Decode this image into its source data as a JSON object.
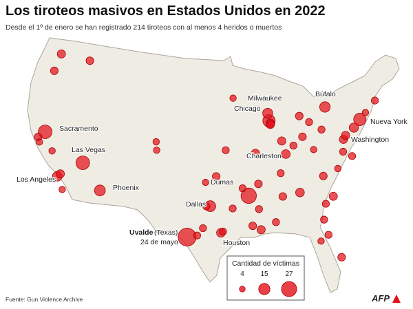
{
  "title": "Los tiroteos masivos en Estados Unidos en 2022",
  "subtitle": "Desde el 1º de enero se han registrado 214 tiroteos con al menos 4 heridos o muertos",
  "cities": [
    "Sacramento",
    "Las Vegas",
    "Los Angeles",
    "Phoenix",
    "Dallas",
    "Dumas",
    "Houston",
    "Chicago",
    "Milwaukee",
    "Charleston",
    "Búfalo",
    "Nueva York",
    "Washington"
  ],
  "uvalde": {
    "name": "Uvalde",
    "state": "(Texas)",
    "date": "24 de mayo"
  },
  "shootings": [
    {
      "lon": -99.79,
      "lat": 29.21,
      "victims": 38
    },
    {
      "lon": -91.49,
      "lat": 33.88,
      "victims": 28
    },
    {
      "lon": -115.14,
      "lat": 36.17,
      "victims": 22
    },
    {
      "lon": -121.49,
      "lat": 38.58,
      "victims": 22
    },
    {
      "lon": -87.8,
      "lat": 42.18,
      "victims": 18
    },
    {
      "lon": -96.8,
      "lat": 32.78,
      "victims": 14
    },
    {
      "lon": -112.07,
      "lat": 33.45,
      "victims": 14
    },
    {
      "lon": -78.88,
      "lat": 42.89,
      "victims": 13
    },
    {
      "lon": -74.0,
      "lat": 40.71,
      "victims": 18
    },
    {
      "lon": -118.24,
      "lat": 34.05,
      "victims": 11
    },
    {
      "lon": -117.9,
      "lat": 34.4,
      "victims": 8
    },
    {
      "lon": -87.9,
      "lat": 43.04,
      "victims": 12
    },
    {
      "lon": -87.63,
      "lat": 41.88,
      "victims": 9
    },
    {
      "lon": -87.65,
      "lat": 41.75,
      "victims": 8
    },
    {
      "lon": -95.37,
      "lat": 29.76,
      "victims": 9
    },
    {
      "lon": -95.1,
      "lat": 29.9,
      "victims": 6
    },
    {
      "lon": -77.04,
      "lat": 38.9,
      "victims": 8
    },
    {
      "lon": -75.16,
      "lat": 39.95,
      "victims": 10
    },
    {
      "lon": -85.76,
      "lat": 38.25,
      "victims": 9
    },
    {
      "lon": -81.63,
      "lat": 38.35,
      "victims": 5
    },
    {
      "lon": -122.33,
      "lat": 47.6,
      "victims": 8
    },
    {
      "lon": -122.68,
      "lat": 45.52,
      "victims": 7
    },
    {
      "lon": -117.4,
      "lat": 47.66,
      "victims": 7
    },
    {
      "lon": -122.27,
      "lat": 37.8,
      "victims": 7
    },
    {
      "lon": -121.9,
      "lat": 37.3,
      "victims": 5
    },
    {
      "lon": -119.8,
      "lat": 36.7,
      "victims": 5
    },
    {
      "lon": -117.16,
      "lat": 32.72,
      "victims": 5
    },
    {
      "lon": -104.99,
      "lat": 39.74,
      "victims": 5
    },
    {
      "lon": -104.8,
      "lat": 38.8,
      "victims": 5
    },
    {
      "lon": -90.2,
      "lat": 38.63,
      "victims": 8
    },
    {
      "lon": -94.58,
      "lat": 39.1,
      "victims": 6
    },
    {
      "lon": -90.05,
      "lat": 35.15,
      "victims": 7
    },
    {
      "lon": -86.78,
      "lat": 36.16,
      "victims": 6
    },
    {
      "lon": -84.39,
      "lat": 33.75,
      "victims": 9
    },
    {
      "lon": -86.8,
      "lat": 33.52,
      "victims": 7
    },
    {
      "lon": -90.07,
      "lat": 29.95,
      "victims": 8
    },
    {
      "lon": -91.15,
      "lat": 30.45,
      "victims": 7
    },
    {
      "lon": -93.75,
      "lat": 32.5,
      "victims": 6
    },
    {
      "lon": -97.33,
      "lat": 32.75,
      "victims": 6
    },
    {
      "lon": -97.74,
      "lat": 30.27,
      "victims": 6
    },
    {
      "lon": -98.49,
      "lat": 29.42,
      "victims": 6
    },
    {
      "lon": -97.5,
      "lat": 35.47,
      "victims": 5
    },
    {
      "lon": -95.99,
      "lat": 36.15,
      "victims": 7
    },
    {
      "lon": -83.05,
      "lat": 42.33,
      "victims": 7
    },
    {
      "lon": -81.69,
      "lat": 41.5,
      "victims": 6
    },
    {
      "lon": -83.0,
      "lat": 39.96,
      "victims": 7
    },
    {
      "lon": -84.51,
      "lat": 39.1,
      "victims": 6
    },
    {
      "lon": -86.16,
      "lat": 39.77,
      "victims": 8
    },
    {
      "lon": -80.0,
      "lat": 40.44,
      "victims": 6
    },
    {
      "lon": -76.61,
      "lat": 39.29,
      "victims": 8
    },
    {
      "lon": -77.44,
      "lat": 37.54,
      "victims": 6
    },
    {
      "lon": -76.3,
      "lat": 36.85,
      "victims": 6
    },
    {
      "lon": -80.84,
      "lat": 35.23,
      "victims": 7
    },
    {
      "lon": -78.64,
      "lat": 35.78,
      "victims": 5
    },
    {
      "lon": -79.94,
      "lat": 32.78,
      "victims": 8
    },
    {
      "lon": -81.1,
      "lat": 32.08,
      "victims": 6
    },
    {
      "lon": -81.66,
      "lat": 30.33,
      "victims": 6
    },
    {
      "lon": -82.46,
      "lat": 27.95,
      "victims": 5
    },
    {
      "lon": -81.38,
      "lat": 28.54,
      "victims": 6
    },
    {
      "lon": -80.19,
      "lat": 25.76,
      "victims": 7
    },
    {
      "lon": -71.06,
      "lat": 42.36,
      "victims": 6
    },
    {
      "lon": -72.93,
      "lat": 41.31,
      "victims": 5
    },
    {
      "lon": -93.27,
      "lat": 44.98,
      "victims": 5
    },
    {
      "lon": -92.29,
      "lat": 34.75,
      "victims": 6
    },
    {
      "lon": -88.04,
      "lat": 30.69,
      "victims": 6
    },
    {
      "lon": -90.18,
      "lat": 32.3,
      "victims": 6
    }
  ],
  "legend": {
    "title": "Cantidad de víctimas",
    "sizes": [
      4,
      15,
      27
    ]
  },
  "source": "Fuente: Gun Violence Archive",
  "credit": "AFP"
}
